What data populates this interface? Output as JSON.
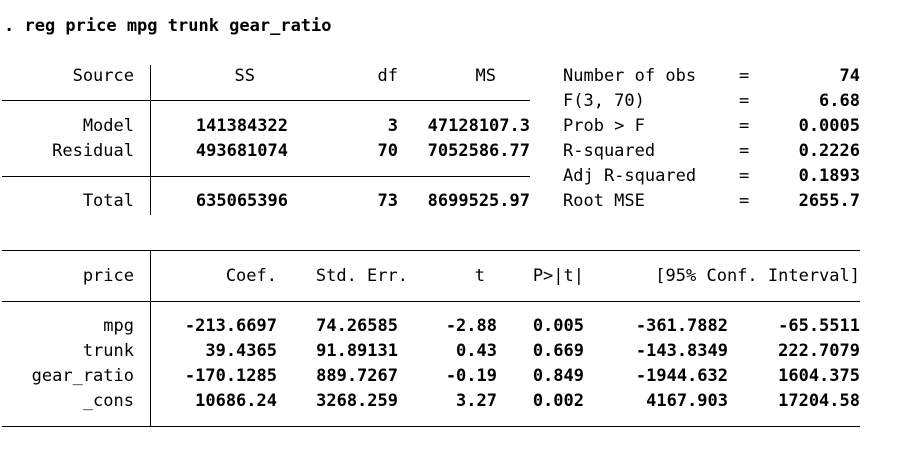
{
  "command": ". reg price mpg trunk gear_ratio",
  "anova": {
    "headers": {
      "source": "Source",
      "ss": "SS",
      "df": "df",
      "ms": "MS"
    },
    "rows": [
      {
        "source": "Model",
        "ss": "141384322",
        "df": "3",
        "ms": "47128107.3"
      },
      {
        "source": "Residual",
        "ss": "493681074",
        "df": "70",
        "ms": "7052586.77"
      }
    ],
    "total": {
      "source": "Total",
      "ss": "635065396",
      "df": "73",
      "ms": "8699525.97"
    }
  },
  "stats": [
    {
      "label": "Number of obs",
      "eq": "=",
      "value": "74"
    },
    {
      "label": "F(3, 70)",
      "eq": "=",
      "value": "6.68"
    },
    {
      "label": "Prob > F",
      "eq": "=",
      "value": "0.0005"
    },
    {
      "label": "R-squared",
      "eq": "=",
      "value": "0.2226"
    },
    {
      "label": "Adj R-squared",
      "eq": "=",
      "value": "0.1893"
    },
    {
      "label": "Root MSE",
      "eq": "=",
      "value": "2655.7"
    }
  ],
  "coef": {
    "headers": {
      "var": "price",
      "coef": "Coef.",
      "se": "Std. Err.",
      "t": "t",
      "p": "P>|t|",
      "ci": "[95% Conf. Interval]"
    },
    "rows": [
      {
        "var": "mpg",
        "coef": "-213.6697",
        "se": "74.26585",
        "t": "-2.88",
        "p": "0.005",
        "lo": "-361.7882",
        "hi": "-65.5511"
      },
      {
        "var": "trunk",
        "coef": "39.4365",
        "se": "91.89131",
        "t": "0.43",
        "p": "0.669",
        "lo": "-143.8349",
        "hi": "222.7079"
      },
      {
        "var": "gear_ratio",
        "coef": "-170.1285",
        "se": "889.7267",
        "t": "-0.19",
        "p": "0.849",
        "lo": "-1944.632",
        "hi": "1604.375"
      },
      {
        "var": "_cons",
        "coef": "10686.24",
        "se": "3268.259",
        "t": "3.27",
        "p": "0.002",
        "lo": "4167.903",
        "hi": "17204.58"
      }
    ]
  }
}
